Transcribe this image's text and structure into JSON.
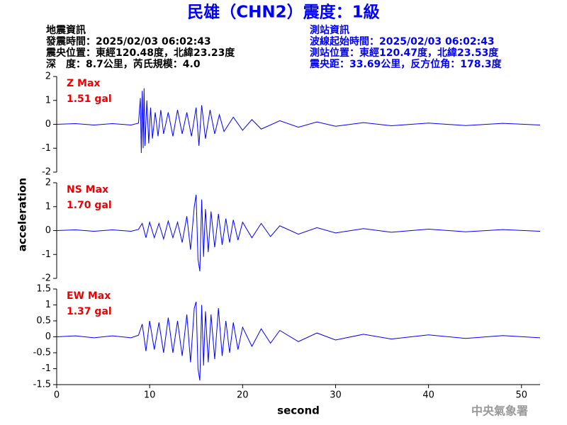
{
  "header": {
    "title": "民雄（CHN2）震度：1級",
    "left": [
      "地震資訊",
      "發震時間：2025/02/03 06:02:43",
      "震央位置：東經120.48度，北緯23.23度",
      "深　度：8.7公里，芮氏規模：4.0"
    ],
    "right": [
      "測站資訊",
      "波線起始時間：2025/02/03 06:02:43",
      "測站位置：東經120.47度，北緯23.53度",
      "震央距：33.69公里，反方位角：178.3度"
    ]
  },
  "footer": "中央氣象署",
  "chart_data": [
    {
      "type": "line",
      "color": "#0000ff",
      "annotations": [
        "Z Max",
        "1.51 gal"
      ],
      "xlim": [
        0,
        52
      ],
      "ylim": [
        -2,
        2
      ],
      "yticks": [
        -2,
        -1,
        0,
        1,
        2
      ],
      "x": [
        0,
        2,
        4,
        6,
        8,
        8.8,
        9.0,
        9.1,
        9.2,
        9.3,
        9.4,
        9.5,
        9.7,
        9.9,
        10.1,
        10.3,
        10.6,
        10.9,
        11.2,
        11.5,
        12,
        12.5,
        13,
        13.5,
        14,
        14.5,
        15,
        15.3,
        15.6,
        16,
        16.5,
        17,
        17.5,
        18,
        19,
        20,
        21,
        22,
        24,
        26,
        28,
        30,
        33,
        36,
        40,
        44,
        48,
        52
      ],
      "values": [
        0,
        0.03,
        -0.03,
        0.03,
        -0.03,
        0.05,
        1.1,
        -1.2,
        1.4,
        -1.0,
        1.51,
        -0.9,
        1.0,
        -0.8,
        0.7,
        -0.6,
        0.5,
        -0.5,
        0.6,
        -0.4,
        0.5,
        -0.5,
        0.6,
        -0.4,
        0.5,
        -0.5,
        0.7,
        -0.9,
        0.8,
        -0.6,
        0.6,
        -0.4,
        0.4,
        -0.3,
        0.3,
        -0.25,
        0.2,
        -0.2,
        0.15,
        -0.12,
        0.1,
        -0.08,
        0.07,
        -0.06,
        0.05,
        -0.05,
        0.04,
        -0.03
      ]
    },
    {
      "type": "line",
      "color": "#0000ff",
      "annotations": [
        "NS Max",
        "1.70 gal"
      ],
      "y_label": "acceleration",
      "xlim": [
        0,
        52
      ],
      "ylim": [
        -2,
        2
      ],
      "yticks": [
        -2,
        -1,
        0,
        1,
        2
      ],
      "x": [
        0,
        2,
        4,
        6,
        8,
        8.8,
        9.2,
        9.6,
        10,
        10.5,
        11,
        11.5,
        12,
        12.5,
        13,
        13.5,
        14,
        14.4,
        14.8,
        15.0,
        15.2,
        15.4,
        15.6,
        15.8,
        16.0,
        16.3,
        16.6,
        17,
        17.4,
        17.8,
        18.2,
        18.6,
        19,
        19.5,
        20,
        21,
        22,
        23,
        24,
        26,
        28,
        30,
        33,
        36,
        40,
        44,
        48,
        52
      ],
      "values": [
        0,
        0.03,
        -0.03,
        0.03,
        -0.03,
        0.05,
        0.3,
        -0.3,
        0.35,
        -0.3,
        0.3,
        -0.35,
        0.4,
        -0.3,
        0.35,
        -0.5,
        0.6,
        -0.8,
        1.0,
        1.5,
        -1.2,
        -1.7,
        1.3,
        -1.1,
        0.9,
        -0.9,
        0.8,
        -0.7,
        0.7,
        -0.6,
        0.5,
        -0.5,
        0.45,
        -0.4,
        0.35,
        -0.3,
        0.3,
        -0.25,
        0.2,
        -0.15,
        0.12,
        -0.1,
        0.08,
        -0.07,
        0.06,
        -0.05,
        0.04,
        -0.03
      ]
    },
    {
      "type": "line",
      "color": "#0000ff",
      "annotations": [
        "EW Max",
        "1.37 gal"
      ],
      "x_label": "second",
      "xlim": [
        0,
        52
      ],
      "ylim": [
        -1.5,
        1.5
      ],
      "yticks": [
        -1.5,
        -1,
        -0.5,
        0,
        0.5,
        1,
        1.5
      ],
      "xticks": [
        0,
        10,
        20,
        30,
        40,
        50
      ],
      "x": [
        0,
        2,
        4,
        6,
        8,
        8.8,
        9.2,
        9.6,
        10,
        10.5,
        11,
        11.5,
        12,
        12.5,
        13,
        13.5,
        14,
        14.4,
        14.8,
        15.0,
        15.2,
        15.4,
        15.6,
        15.8,
        16.0,
        16.3,
        16.6,
        17,
        17.4,
        17.8,
        18.2,
        18.6,
        19,
        19.5,
        20,
        21,
        22,
        23,
        24,
        26,
        28,
        30,
        33,
        36,
        40,
        44,
        48,
        52
      ],
      "values": [
        0,
        0.03,
        -0.03,
        0.03,
        -0.03,
        0.05,
        0.4,
        -0.45,
        0.5,
        -0.4,
        0.45,
        -0.5,
        0.6,
        -0.5,
        0.5,
        -0.6,
        0.7,
        -0.8,
        0.9,
        1.1,
        -1.0,
        -1.37,
        1.0,
        -0.9,
        0.8,
        -0.8,
        0.7,
        -0.7,
        0.9,
        -0.6,
        0.5,
        -0.5,
        0.45,
        -0.4,
        0.3,
        -0.3,
        0.25,
        -0.2,
        0.2,
        -0.15,
        0.12,
        -0.1,
        0.08,
        -0.07,
        0.06,
        -0.05,
        0.04,
        -0.03
      ]
    }
  ]
}
